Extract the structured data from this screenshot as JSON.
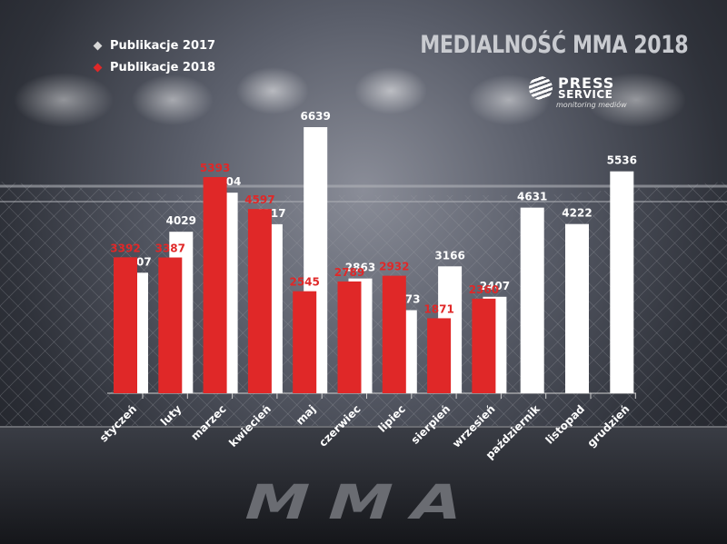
{
  "title": "MEDIALNOŚĆ MMA 2018",
  "legend": [
    {
      "label": "Publikacje 2017",
      "color": "#d8d8d8"
    },
    {
      "label": "Publikacje 2018",
      "color": "#e02828"
    }
  ],
  "logo": {
    "line1": "PRESS",
    "line2": "SERVICE",
    "line3": "monitoring mediów"
  },
  "background_text": "MMA",
  "colors": {
    "series_2017": "#ffffff",
    "series_2018": "#e02828",
    "label_2018": "#e02828",
    "label_2017": "#ffffff"
  },
  "chart_data": {
    "type": "bar",
    "title": "MEDIALNOŚĆ MMA 2018",
    "categories": [
      "styczeń",
      "luty",
      "marzec",
      "kwiecień",
      "maj",
      "czerwiec",
      "lipiec",
      "sierpień",
      "wrzesień",
      "październik",
      "listopad",
      "grudzień"
    ],
    "series": [
      {
        "name": "Publikacje 2017",
        "values": [
          3007,
          4029,
          5004,
          4217,
          6639,
          2863,
          2073,
          3166,
          2407,
          4631,
          4222,
          5536
        ]
      },
      {
        "name": "Publikacje 2018",
        "values": [
          3392,
          3387,
          5393,
          4597,
          2545,
          2789,
          2932,
          1871,
          2360,
          null,
          null,
          null
        ]
      }
    ],
    "ylim": [
      0,
      6800
    ],
    "grid": false,
    "legend_position": "top-left"
  }
}
